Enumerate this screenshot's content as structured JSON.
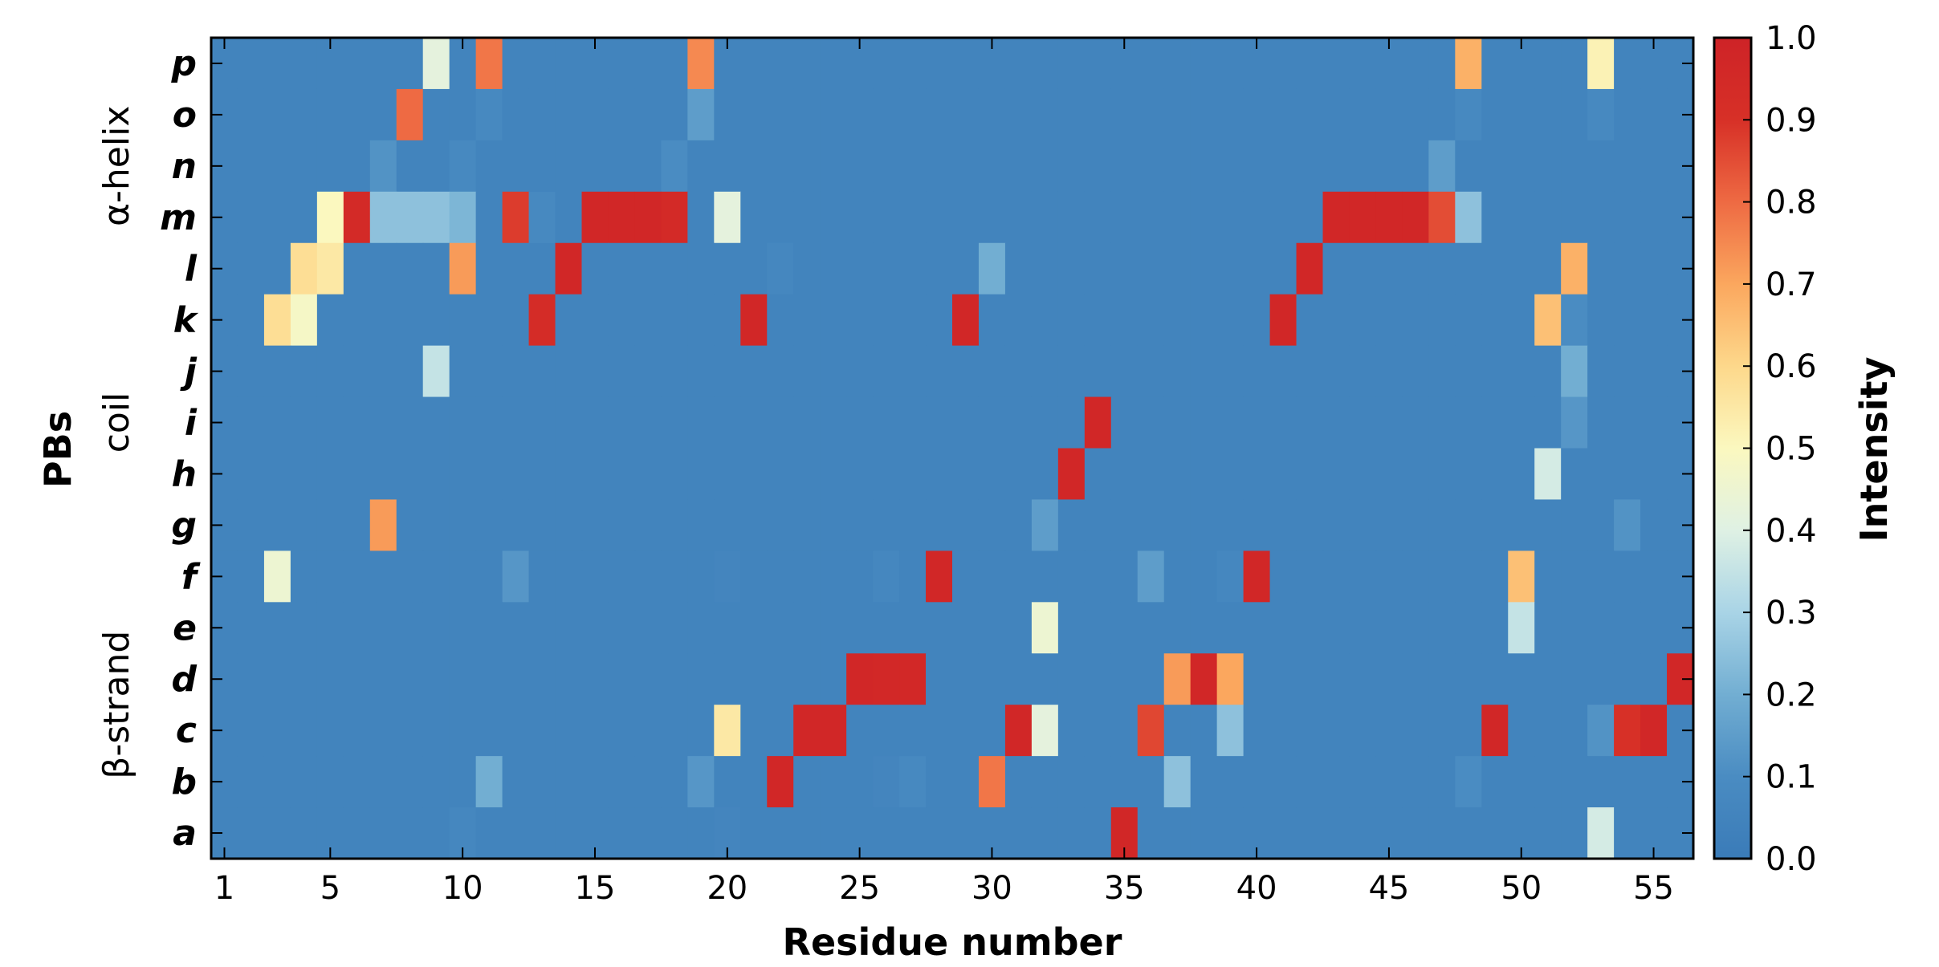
{
  "chart_data": {
    "type": "heatmap",
    "xlabel": "Residue number",
    "ylabel": "PBs",
    "x": [
      1,
      2,
      3,
      4,
      5,
      6,
      7,
      8,
      9,
      10,
      11,
      12,
      13,
      14,
      15,
      16,
      17,
      18,
      19,
      20,
      21,
      22,
      23,
      24,
      25,
      26,
      27,
      28,
      29,
      30,
      31,
      32,
      33,
      34,
      35,
      36,
      37,
      38,
      39,
      40,
      41,
      42,
      43,
      44,
      45,
      46,
      47,
      48,
      49,
      50,
      51,
      52,
      53,
      54,
      55,
      56
    ],
    "xticks": [
      1,
      5,
      10,
      15,
      20,
      25,
      30,
      35,
      40,
      45,
      50,
      55
    ],
    "xlim": [
      0.5,
      56.5
    ],
    "y": [
      "p",
      "o",
      "n",
      "m",
      "l",
      "k",
      "j",
      "i",
      "h",
      "g",
      "f",
      "e",
      "d",
      "c",
      "b",
      "a"
    ],
    "groups": [
      {
        "label": "α-helix",
        "rows": [
          "p",
          "o",
          "n",
          "m",
          "l"
        ]
      },
      {
        "label": "coil",
        "rows": [
          "k",
          "j",
          "i",
          "h",
          "g"
        ]
      },
      {
        "label": "β-strand",
        "rows": [
          "f",
          "e",
          "d",
          "c",
          "b",
          "a"
        ]
      }
    ],
    "colorbar": {
      "label": "Intensity",
      "range": [
        0.0,
        1.0
      ],
      "ticks": [
        "0.0",
        "0.1",
        "0.2",
        "0.3",
        "0.4",
        "0.5",
        "0.6",
        "0.7",
        "0.8",
        "0.9",
        "1.0"
      ],
      "colormap": [
        "#3a7bb8",
        "#4a8cc2",
        "#72aed2",
        "#a9d4e6",
        "#dff1e4",
        "#fbf8bf",
        "#fdd88b",
        "#fba75e",
        "#ee6a43",
        "#d73027",
        "#ce2327"
      ]
    },
    "background_value": 0.05,
    "values": {
      "p": {
        "9": 0.42,
        "11": 0.78,
        "19": 0.75,
        "48": 0.68,
        "53": 0.52
      },
      "o": {
        "8": 0.8,
        "11": 0.08,
        "19": 0.15,
        "48": 0.08,
        "53": 0.08
      },
      "n": {
        "7": 0.12,
        "10": 0.08,
        "18": 0.1,
        "47": 0.15
      },
      "m": {
        "5": 0.5,
        "6": 0.95,
        "7": 0.25,
        "8": 0.25,
        "9": 0.25,
        "10": 0.22,
        "12": 0.88,
        "13": 0.08,
        "15": 0.97,
        "16": 0.97,
        "17": 0.97,
        "18": 0.95,
        "20": 0.42,
        "43": 0.97,
        "44": 0.97,
        "45": 0.97,
        "46": 0.97,
        "47": 0.85,
        "48": 0.25
      },
      "l": {
        "4": 0.58,
        "5": 0.55,
        "10": 0.72,
        "14": 0.97,
        "22": 0.07,
        "30": 0.2,
        "42": 0.97,
        "52": 0.68
      },
      "k": {
        "3": 0.58,
        "4": 0.48,
        "13": 0.93,
        "21": 0.97,
        "29": 0.97,
        "41": 0.97,
        "51": 0.65,
        "52": 0.1
      },
      "j": {
        "9": 0.35,
        "52": 0.2
      },
      "i": {
        "34": 0.97,
        "52": 0.13
      },
      "h": {
        "33": 0.97,
        "51": 0.38
      },
      "g": {
        "7": 0.72,
        "32": 0.15,
        "54": 0.12
      },
      "f": {
        "3": 0.45,
        "12": 0.13,
        "20": 0.06,
        "26": 0.07,
        "28": 0.97,
        "36": 0.15,
        "39": 0.07,
        "40": 0.97,
        "50": 0.65
      },
      "e": {
        "32": 0.45,
        "50": 0.35
      },
      "d": {
        "25": 0.97,
        "26": 0.96,
        "27": 0.96,
        "37": 0.72,
        "38": 0.97,
        "39": 0.7,
        "56": 0.97
      },
      "c": {
        "20": 0.55,
        "23": 0.97,
        "24": 0.97,
        "31": 0.97,
        "32": 0.42,
        "36": 0.86,
        "39": 0.25,
        "49": 0.97,
        "53": 0.12,
        "54": 0.9,
        "55": 0.97
      },
      "b": {
        "11": 0.2,
        "19": 0.13,
        "22": 0.97,
        "26": 0.06,
        "27": 0.08,
        "30": 0.78,
        "37": 0.25,
        "48": 0.1
      },
      "a": {
        "10": 0.07,
        "20": 0.06,
        "35": 0.97,
        "53": 0.38
      }
    }
  }
}
